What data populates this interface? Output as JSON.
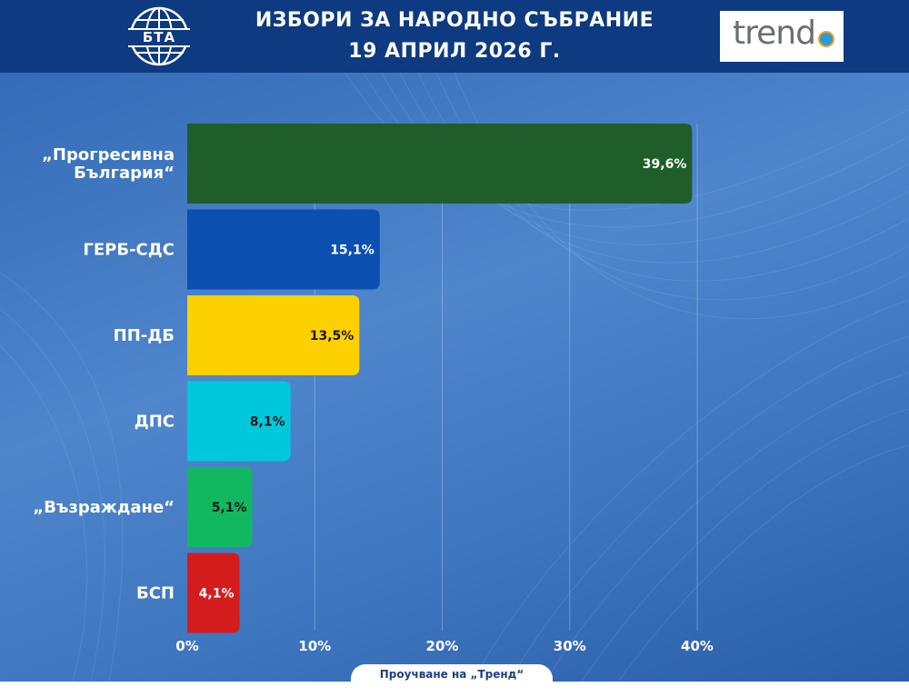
{
  "header": {
    "title_line1": "ИЗБОРИ ЗА НАРОДНО СЪБРАНИЕ",
    "title_line2": "19 АПРИЛ 2026 Г.",
    "left_logo_text": "БТА",
    "right_logo_text": "trend"
  },
  "source_note": "Проучване на „Тренд“",
  "colors": {
    "header_bg": "#0d3a80",
    "background": "#3f77c0"
  },
  "chart_data": {
    "type": "bar",
    "orientation": "horizontal",
    "categories": [
      [
        "„Прогресивна",
        "България“"
      ],
      [
        "ГЕРБ-СДС"
      ],
      [
        "ПП-ДБ"
      ],
      [
        "ДПС"
      ],
      [
        "„Възраждане“"
      ],
      [
        "БСП"
      ]
    ],
    "values": [
      39.6,
      15.1,
      13.5,
      8.1,
      5.1,
      4.1
    ],
    "value_labels": [
      "39,6%",
      "15,1%",
      "13,5%",
      "8,1%",
      "5,1%",
      "4,1%"
    ],
    "bar_colors": [
      "#1f5e2a",
      "#0b4fb0",
      "#fdd000",
      "#00c8dc",
      "#11b860",
      "#d41c1c"
    ],
    "label_colors": [
      "#ffffff",
      "#ffffff",
      "#1a1a1a",
      "#1a1a1a",
      "#1a1a1a",
      "#ffffff"
    ],
    "xlim": [
      0,
      40
    ],
    "x_ticks": [
      0,
      10,
      20,
      30,
      40
    ],
    "x_tick_labels": [
      "0%",
      "10%",
      "20%",
      "30%",
      "40%"
    ],
    "grid": true
  }
}
